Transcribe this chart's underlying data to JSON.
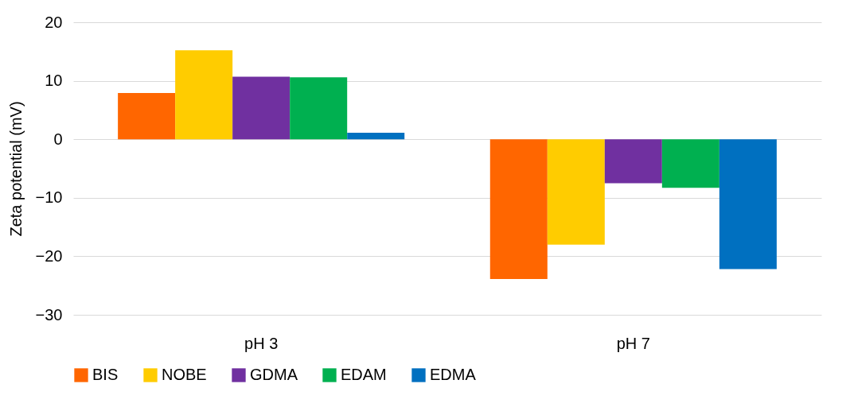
{
  "chart_data": {
    "type": "bar",
    "ylabel": "Zeta potential (mV)",
    "categories": [
      "pH 3",
      "pH 7"
    ],
    "series": [
      {
        "name": "BIS",
        "color": "#ff6600",
        "values": [
          7.9,
          -23.9
        ]
      },
      {
        "name": "NOBE",
        "color": "#ffcc00",
        "values": [
          15.2,
          -18.0
        ]
      },
      {
        "name": "GDMA",
        "color": "#7030a0",
        "values": [
          10.7,
          -7.5
        ]
      },
      {
        "name": "EDAM",
        "color": "#00b050",
        "values": [
          10.6,
          -8.3
        ]
      },
      {
        "name": "EDMA",
        "color": "#0070c0",
        "values": [
          1.1,
          -22.2
        ]
      }
    ],
    "ylim": [
      -30,
      20
    ],
    "yticks": [
      -30,
      -20,
      -10,
      0,
      10,
      20
    ],
    "grid": "y",
    "legend": "bottom"
  }
}
